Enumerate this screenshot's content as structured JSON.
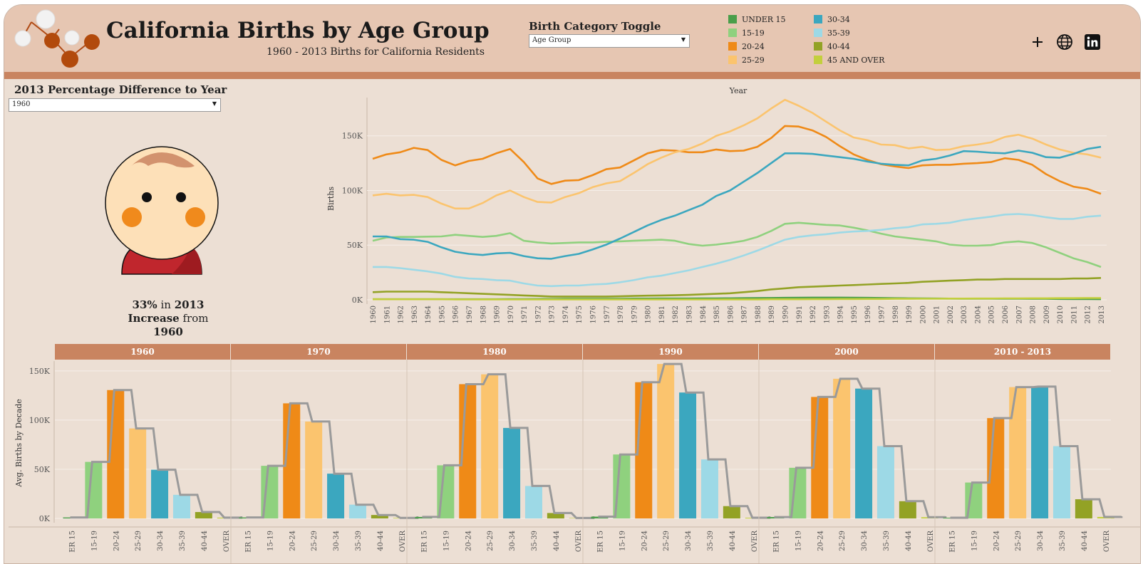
{
  "header": {
    "title": "California Births by Age Group",
    "subtitle": "1960 - 2013 Births for California Residents",
    "toggle_label": "Birth Category Toggle",
    "toggle_value": "Age Group",
    "icons": [
      "plus-icon",
      "globe-icon",
      "linkedin-icon"
    ]
  },
  "legend": [
    {
      "label": "UNDER 15",
      "color": "#4a9e4a"
    },
    {
      "label": "15-19",
      "color": "#8fd17e"
    },
    {
      "label": "20-24",
      "color": "#ef8a17"
    },
    {
      "label": "25-29",
      "color": "#fbc46e"
    },
    {
      "label": "30-34",
      "color": "#3ba7bf"
    },
    {
      "label": "35-39",
      "color": "#9dd9e6"
    },
    {
      "label": "40-44",
      "color": "#93a225"
    },
    {
      "label": "45 AND OVER",
      "color": "#c3cf3c"
    }
  ],
  "left_panel": {
    "title": "2013 Percentage Difference to Year",
    "select_value": "1960",
    "pct_value": "33%",
    "pct_word_in": "in",
    "pct_year": "2013",
    "pct_direction": "Increase",
    "pct_word_from": "from",
    "pct_from_year": "1960"
  },
  "chart_data": [
    {
      "type": "line",
      "title": "",
      "xlabel": "Year",
      "ylabel": "Births",
      "x": [
        1960,
        1961,
        1962,
        1963,
        1964,
        1965,
        1966,
        1967,
        1968,
        1969,
        1970,
        1971,
        1972,
        1973,
        1974,
        1975,
        1976,
        1977,
        1978,
        1979,
        1980,
        1981,
        1982,
        1983,
        1984,
        1985,
        1986,
        1987,
        1988,
        1989,
        1990,
        1991,
        1992,
        1993,
        1994,
        1995,
        1996,
        1997,
        1998,
        1999,
        2000,
        2001,
        2002,
        2003,
        2004,
        2005,
        2006,
        2007,
        2008,
        2009,
        2010,
        2011,
        2012,
        2013
      ],
      "ylim": [
        0,
        185000
      ],
      "yticks": [
        "0K",
        "50K",
        "100K",
        "150K"
      ],
      "grid": true,
      "series": [
        {
          "name": "UNDER 15",
          "values": [
            500,
            500,
            500,
            500,
            500,
            500,
            500,
            500,
            500,
            500,
            600,
            600,
            700,
            800,
            900,
            900,
            1000,
            1000,
            1000,
            1100,
            1100,
            1200,
            1200,
            1200,
            1300,
            1300,
            1400,
            1500,
            1600,
            1700,
            1800,
            1900,
            2000,
            2000,
            2000,
            1900,
            1800,
            1700,
            1500,
            1400,
            1300,
            1200,
            1100,
            1000,
            1000,
            1000,
            1000,
            1000,
            900,
            900,
            800,
            700,
            700,
            600
          ]
        },
        {
          "name": "15-19",
          "values": [
            54000,
            57000,
            57500,
            57500,
            57800,
            58000,
            59500,
            58500,
            57500,
            58500,
            61000,
            54000,
            52500,
            51500,
            52000,
            52500,
            52500,
            53000,
            53500,
            54000,
            54500,
            55000,
            54000,
            51000,
            49500,
            50500,
            52000,
            54000,
            57500,
            63000,
            69500,
            70500,
            69500,
            68500,
            68000,
            66000,
            63500,
            60500,
            58000,
            56500,
            55000,
            53500,
            50500,
            49500,
            49500,
            50000,
            52500,
            53500,
            52000,
            48000,
            43000,
            38000,
            34500,
            30000
          ]
        },
        {
          "name": "20-24",
          "values": [
            129000,
            133000,
            135000,
            139000,
            137000,
            128000,
            123000,
            127000,
            129000,
            134000,
            138000,
            126000,
            111000,
            106000,
            109000,
            109500,
            114000,
            119500,
            121000,
            127500,
            134000,
            137000,
            136500,
            135000,
            135000,
            137500,
            136000,
            136500,
            140000,
            148000,
            159000,
            158500,
            155000,
            149000,
            140500,
            133000,
            128000,
            124000,
            122000,
            120500,
            123000,
            123500,
            123500,
            124500,
            125000,
            126000,
            129500,
            128000,
            123500,
            115000,
            108500,
            103500,
            101500,
            97000
          ]
        },
        {
          "name": "25-29",
          "values": [
            95500,
            97000,
            95500,
            96000,
            94000,
            88000,
            83500,
            83500,
            88500,
            95500,
            100000,
            94000,
            89500,
            89000,
            94000,
            97500,
            103000,
            106500,
            108500,
            116000,
            124000,
            130000,
            135000,
            138000,
            143000,
            150000,
            154000,
            159500,
            166000,
            175000,
            183000,
            177500,
            171000,
            163000,
            155000,
            148500,
            146000,
            142000,
            141500,
            138500,
            140000,
            137000,
            137500,
            140500,
            142000,
            144000,
            149000,
            151000,
            147500,
            142000,
            137500,
            134500,
            133000,
            130000
          ]
        },
        {
          "name": "30-34",
          "values": [
            58000,
            58000,
            55500,
            55000,
            53000,
            48000,
            44000,
            42000,
            41000,
            42500,
            43000,
            40000,
            38000,
            37500,
            40000,
            42000,
            46000,
            50500,
            56000,
            62000,
            68000,
            73000,
            77000,
            82000,
            87000,
            95000,
            100000,
            108000,
            116000,
            125000,
            134000,
            134000,
            133500,
            132000,
            130500,
            129000,
            126500,
            124500,
            123500,
            123000,
            127500,
            129000,
            132000,
            136000,
            135500,
            134500,
            134000,
            136500,
            134500,
            130500,
            130000,
            133500,
            138000,
            140000
          ]
        },
        {
          "name": "35-39",
          "values": [
            30000,
            30000,
            29000,
            27500,
            26000,
            24000,
            21000,
            19500,
            19000,
            18000,
            17500,
            15000,
            13000,
            12500,
            13000,
            13000,
            14000,
            14500,
            16000,
            18000,
            20500,
            22000,
            24500,
            27000,
            30000,
            33000,
            36500,
            40500,
            45000,
            50000,
            55000,
            57500,
            59000,
            60000,
            61500,
            62500,
            63000,
            64000,
            65500,
            66500,
            69000,
            69500,
            70500,
            73000,
            74500,
            76000,
            78000,
            78500,
            77500,
            75500,
            74000,
            74000,
            76000,
            77000
          ]
        },
        {
          "name": "40-44",
          "values": [
            7000,
            7500,
            7500,
            7500,
            7500,
            7000,
            6500,
            6000,
            5500,
            5000,
            4500,
            4000,
            3500,
            3000,
            3000,
            3000,
            3000,
            3000,
            3200,
            3500,
            3800,
            4000,
            4200,
            4500,
            5000,
            5500,
            6000,
            7000,
            8000,
            9500,
            10500,
            11500,
            12000,
            12500,
            13000,
            13500,
            14000,
            14500,
            15000,
            15500,
            16500,
            17000,
            17500,
            18000,
            18500,
            18500,
            19000,
            19000,
            19000,
            19000,
            19000,
            19500,
            19500,
            20000
          ]
        },
        {
          "name": "45 AND OVER",
          "values": [
            500,
            500,
            500,
            500,
            500,
            500,
            400,
            400,
            400,
            400,
            300,
            300,
            300,
            300,
            300,
            300,
            300,
            300,
            300,
            300,
            300,
            300,
            300,
            300,
            300,
            300,
            400,
            400,
            400,
            500,
            500,
            500,
            600,
            600,
            700,
            700,
            800,
            800,
            900,
            900,
            1000,
            1000,
            1100,
            1100,
            1200,
            1200,
            1300,
            1300,
            1400,
            1400,
            1500,
            1500,
            1600,
            1600
          ]
        }
      ]
    },
    {
      "type": "bar",
      "title": "",
      "ylabel": "Avg. Births by Decade",
      "ylim": [
        0,
        160000
      ],
      "yticks": [
        "0K",
        "50K",
        "100K",
        "150K"
      ],
      "categories": [
        "UNDER 15",
        "15-19",
        "20-24",
        "25-29",
        "30-34",
        "35-39",
        "40-44",
        "45 AND OVER"
      ],
      "tick_labels": [
        "ER 15",
        "15-19",
        "20-24",
        "25-29",
        "30-34",
        "35-39",
        "40-44",
        "OVER"
      ],
      "overlay": "step line of same values",
      "panels": [
        {
          "name": "1960",
          "values": [
            1000,
            57500,
            130500,
            91500,
            49500,
            24000,
            6500,
            800
          ]
        },
        {
          "name": "1970",
          "values": [
            1000,
            53500,
            117000,
            98500,
            45500,
            14000,
            3500,
            500
          ]
        },
        {
          "name": "1980",
          "values": [
            1500,
            54000,
            136500,
            146500,
            92000,
            33000,
            5500,
            400
          ]
        },
        {
          "name": "1990",
          "values": [
            1800,
            65000,
            138500,
            157000,
            128000,
            60000,
            12500,
            700
          ]
        },
        {
          "name": "2000",
          "values": [
            1400,
            51500,
            123500,
            142000,
            132000,
            73500,
            17500,
            1200
          ]
        },
        {
          "name": "2010 - 2013",
          "values": [
            700,
            36500,
            102000,
            133500,
            134000,
            73500,
            19500,
            1500
          ]
        }
      ]
    }
  ]
}
